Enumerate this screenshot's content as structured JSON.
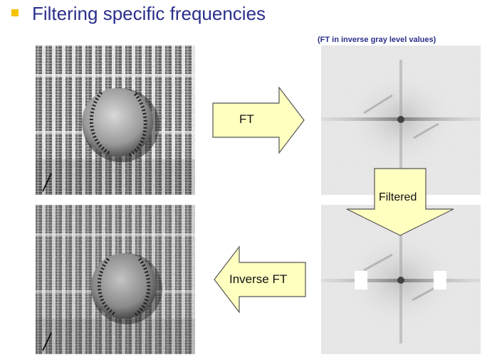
{
  "slide": {
    "title": "Filtering specific frequencies",
    "note": "(FT in inverse gray level values)"
  },
  "arrows": {
    "forward": "FT",
    "filtered": "Filtered",
    "inverse": "Inverse FT"
  },
  "colors": {
    "title": "#2a2f8a",
    "bullet": "#f5c400",
    "arrow_fill": "#ffffc0",
    "arrow_stroke": "#555555"
  }
}
